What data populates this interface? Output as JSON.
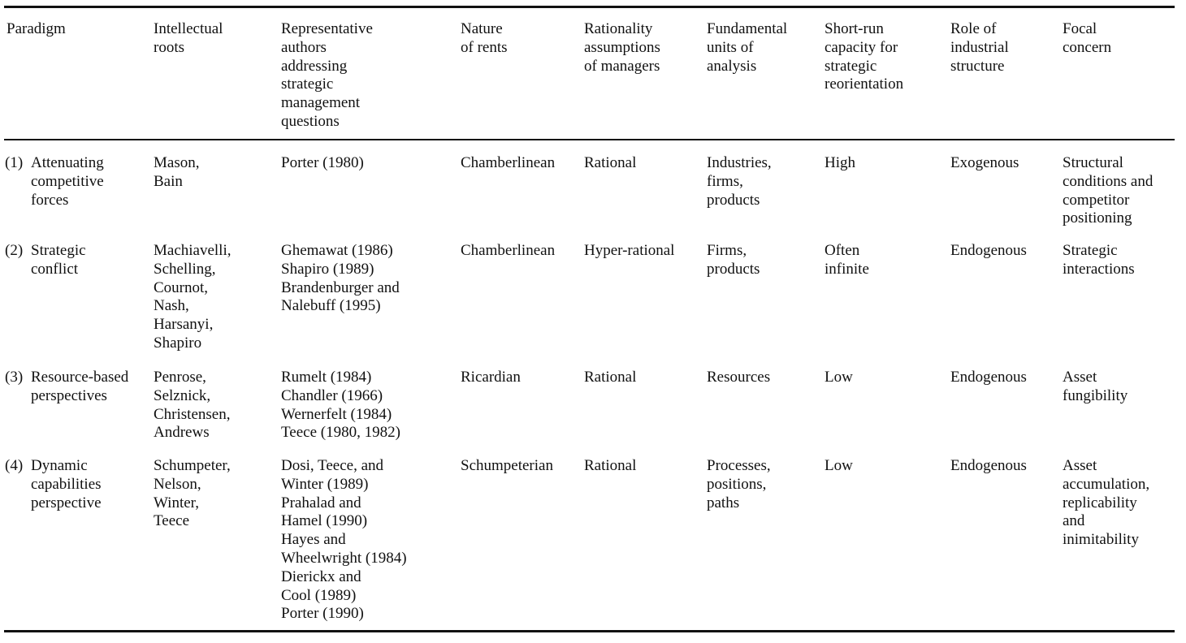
{
  "headers": [
    "Paradigm",
    "Intellectual\nroots",
    "Representative\nauthors\naddressing\nstrategic\nmanagement\nquestions",
    "Nature\nof rents",
    "Rationality\nassumptions\nof managers",
    "Fundamental\nunits of\nanalysis",
    "Short-run\ncapacity for\nstrategic\nreorientation",
    "Role of\nindustrial\nstructure",
    "Focal\nconcern"
  ],
  "rows": [
    {
      "num": "(1)",
      "paradigm": "Attenuating\ncompetitive\nforces",
      "roots": "Mason,\nBain",
      "authors": "Porter (1980)",
      "rents": "Chamberlinean",
      "rationality": "Rational",
      "units": "Industries,\nfirms,\nproducts",
      "capacity": "High",
      "structure": "Exogenous",
      "focal": "Structural\nconditions and\ncompetitor\npositioning"
    },
    {
      "num": "(2)",
      "paradigm": "Strategic\nconflict",
      "roots": "Machiavelli,\nSchelling,\nCournot,\nNash,\nHarsanyi,\nShapiro",
      "authors": "Ghemawat (1986)\nShapiro (1989)\nBrandenburger and\nNalebuff (1995)",
      "rents": "Chamberlinean",
      "rationality": "Hyper-rational",
      "units": "Firms,\nproducts",
      "capacity": "Often\ninfinite",
      "structure": "Endogenous",
      "focal": "Strategic\ninteractions"
    },
    {
      "num": "(3)",
      "paradigm": "Resource-based\nperspectives",
      "roots": "Penrose,\nSelznick,\nChristensen,\nAndrews",
      "authors": "Rumelt (1984)\nChandler (1966)\nWernerfelt (1984)\nTeece (1980, 1982)",
      "rents": "Ricardian",
      "rationality": "Rational",
      "units": "Resources",
      "capacity": "Low",
      "structure": "Endogenous",
      "focal": "Asset\nfungibility"
    },
    {
      "num": "(4)",
      "paradigm": "Dynamic\ncapabilities\nperspective",
      "roots": "Schumpeter,\nNelson,\nWinter,\nTeece",
      "authors": "Dosi, Teece, and\nWinter (1989)\nPrahalad and\nHamel (1990)\nHayes and\nWheelwright (1984)\nDierickx and\nCool (1989)\nPorter (1990)",
      "rents": "Schumpeterian",
      "rationality": "Rational",
      "units": "Processes,\npositions,\npaths",
      "capacity": "Low",
      "structure": "Endogenous",
      "focal": "Asset\naccumulation,\nreplicability\nand\ninimitability"
    }
  ]
}
